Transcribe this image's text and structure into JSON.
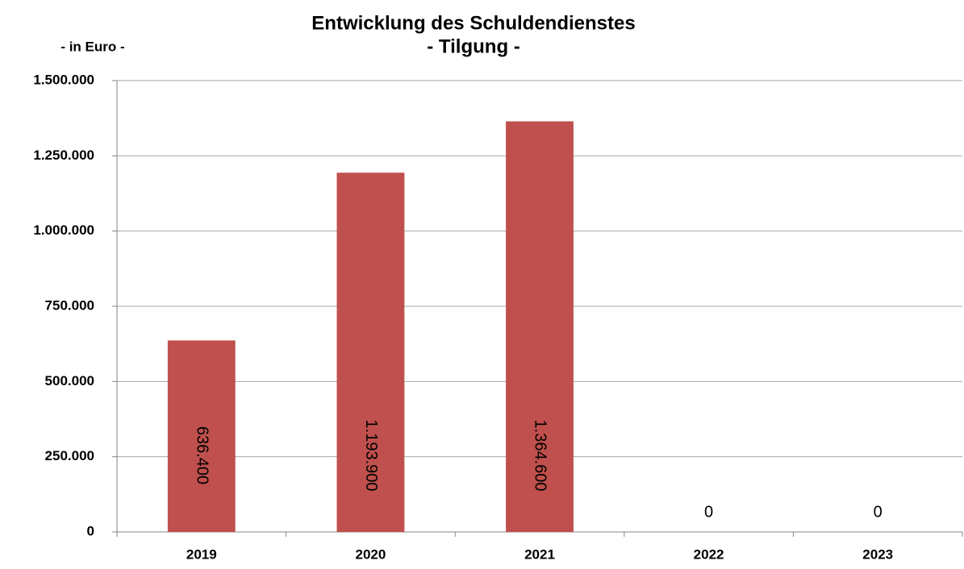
{
  "chart_data": {
    "type": "bar",
    "title": "Entwicklung des Schuldendienstes",
    "subtitle": "- Tilgung -",
    "y_label": "- in Euro -",
    "categories": [
      "2019",
      "2020",
      "2021",
      "2022",
      "2023"
    ],
    "values": [
      636400,
      1193900,
      1364600,
      0,
      0
    ],
    "value_labels": [
      "636.400",
      "1.193.900",
      "1.364.600",
      "0",
      "0"
    ],
    "color": "#c0504d",
    "ylim": [
      0,
      1500000
    ],
    "yticks": [
      0,
      {
        "value": 250000,
        "label": "250.000"
      },
      {
        "value": 500000,
        "label": "500.000"
      },
      {
        "value": 750000,
        "label": "750.000"
      },
      {
        "value": 1000000,
        "label": "1.000.000"
      },
      {
        "value": 1250000,
        "label": "1.250.000"
      },
      {
        "value": 1500000,
        "label": "1.500.000"
      }
    ],
    "grid": true
  }
}
